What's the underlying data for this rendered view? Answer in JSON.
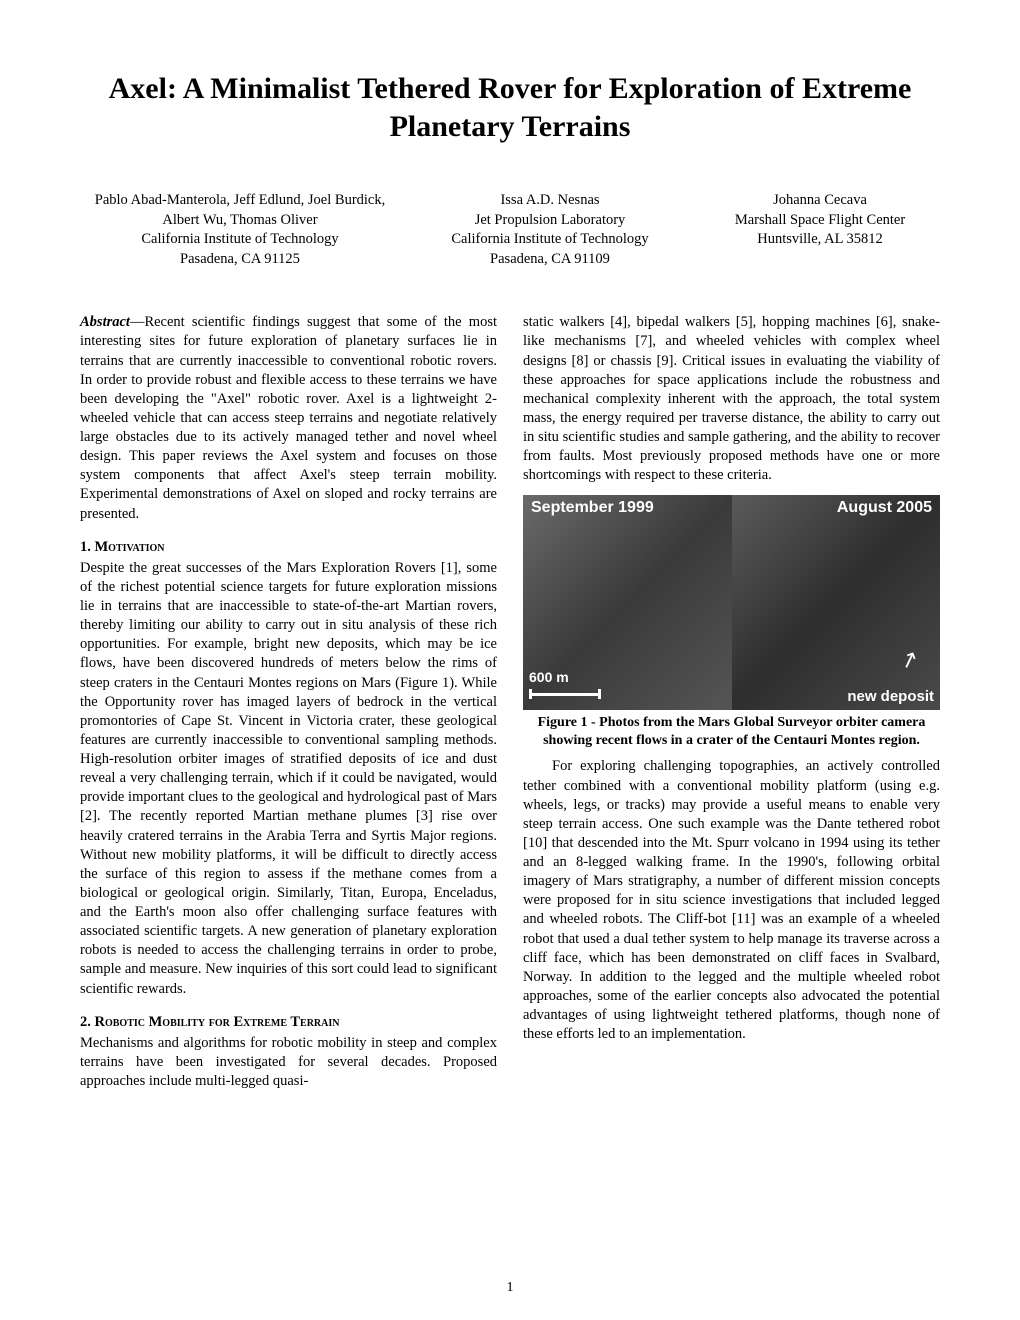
{
  "title": "Axel: A Minimalist Tethered Rover for Exploration of Extreme Planetary Terrains",
  "authors": [
    {
      "names": "Pablo Abad-Manterola, Jeff Edlund, Joel Burdick, Albert Wu, Thomas Oliver",
      "affiliation": "California Institute of Technology",
      "location": "Pasadena, CA 91125"
    },
    {
      "names": "Issa A.D. Nesnas",
      "affiliation1": "Jet Propulsion Laboratory",
      "affiliation2": "California Institute of Technology",
      "location": "Pasadena, CA 91109"
    },
    {
      "names": "Johanna Cecava",
      "affiliation": "Marshall Space Flight Center",
      "location": "Huntsville, AL 35812"
    }
  ],
  "abstract_label": "Abstract",
  "abstract_text": "—Recent scientific findings suggest that some of the most interesting sites for future exploration of planetary surfaces lie in terrains that are currently inaccessible to conventional robotic rovers. In order to provide robust and flexible access to these terrains we have been developing the \"Axel\" robotic rover. Axel is a lightweight 2-wheeled vehicle that can access steep terrains and negotiate relatively large obstacles due to its actively managed tether and novel wheel design. This paper reviews the Axel system and focuses on those system components that affect Axel's steep terrain mobility. Experimental demonstrations of Axel on sloped and rocky terrains are presented.",
  "section1_heading": "1. Motivation",
  "section1_body": "Despite the great successes of the Mars Exploration Rovers [1], some of the richest potential science targets for future exploration missions lie in terrains that are inaccessible to state-of-the-art Martian rovers, thereby limiting our ability to carry out in situ analysis of these rich opportunities. For example, bright new deposits, which may be ice flows, have been discovered hundreds of meters below the rims of steep craters in the Centauri Montes regions on Mars (Figure 1). While the Opportunity rover has imaged layers of bedrock in the vertical promontories of Cape St. Vincent in Victoria crater, these geological features are currently inaccessible to conventional sampling methods. High-resolution orbiter images of stratified deposits of ice and dust reveal a very challenging terrain, which if it could be navigated, would provide important clues to the geological and hydrological past of Mars [2]. The recently reported Martian methane plumes [3] rise over heavily cratered terrains in the Arabia Terra and Syrtis Major regions. Without new mobility platforms, it will be difficult to directly access the surface of this region to assess if the methane comes from a biological or geological origin. Similarly, Titan, Europa, Enceladus, and the Earth's moon also offer challenging surface features with associated scientific targets. A new generation of planetary exploration robots is needed to access the challenging terrains in order to probe, sample and measure. New inquiries of this sort could lead to significant scientific rewards.",
  "section2_heading": "2. Robotic Mobility for Extreme Terrain",
  "section2_body_left": "Mechanisms and algorithms for robotic mobility in steep and complex terrains have been investigated for several decades. Proposed approaches include multi-legged quasi-",
  "right_para1": "static walkers [4], bipedal walkers [5], hopping machines [6], snake-like mechanisms [7], and wheeled vehicles with complex wheel designs [8] or chassis [9]. Critical issues in evaluating the viability of these approaches for space applications include the robustness and mechanical complexity inherent with the approach, the total system mass, the energy required per traverse distance, the ability to carry out in situ scientific studies and sample gathering, and the ability to recover from faults. Most previously proposed methods have one or more shortcomings with respect to these criteria.",
  "figure": {
    "label_left": "September 1999",
    "label_right": "August 2005",
    "scale": "600 m",
    "annotation": "new deposit",
    "caption": "Figure 1 - Photos from the Mars Global Surveyor orbiter camera showing recent flows in a crater of the Centauri Montes region."
  },
  "right_para2_indent": "  For exploring challenging topographies, an actively controlled tether combined with a conventional mobility platform (using e.g. wheels, legs, or tracks) may provide a useful means to enable very steep terrain access. One such example was the Dante tethered robot [10] that descended into the Mt. Spurr volcano in 1994 using its tether and an 8-legged walking frame. In the 1990's, following orbital imagery of Mars stratigraphy, a number of different mission concepts were proposed for in situ science investigations that included legged and wheeled robots. The Cliff-bot [11] was an example of a wheeled robot that used a dual tether system to help manage its traverse across a cliff face, which has been demonstrated on cliff faces in Svalbard, Norway. In addition to the legged and the multiple wheeled robot approaches, some of the earlier concepts also advocated the potential advantages of using lightweight tethered platforms, though none of these efforts led to an implementation.",
  "page_number": "1"
}
